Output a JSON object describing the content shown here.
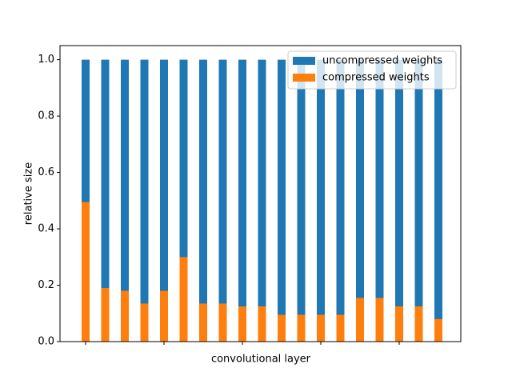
{
  "chart_data": {
    "type": "bar",
    "xlabel": "convolutional layer",
    "ylabel": "relative size",
    "categories": [
      null,
      null,
      null,
      null,
      null,
      null,
      null,
      null,
      null,
      null,
      null,
      null,
      null,
      null,
      null,
      null,
      null,
      null,
      null
    ],
    "series": [
      {
        "name": "uncompressed weights",
        "color": "#1f77b4",
        "values": [
          1,
          1,
          1,
          1,
          1,
          1,
          1,
          1,
          1,
          1,
          1,
          1,
          1,
          1,
          1,
          1,
          1,
          1,
          1
        ]
      },
      {
        "name": "compressed weights",
        "color": "#ff7f0e",
        "values": [
          0.495,
          0.19,
          0.18,
          0.135,
          0.18,
          0.3,
          0.135,
          0.135,
          0.125,
          0.125,
          0.095,
          0.095,
          0.095,
          0.095,
          0.155,
          0.155,
          0.125,
          0.125,
          0.08
        ]
      }
    ],
    "ylim": [
      0,
      1.05
    ],
    "yticks": [
      {
        "value": 0,
        "label": "0.0"
      },
      0.2,
      0.4,
      0.6,
      0.8,
      {
        "value": 1,
        "label": "1.0"
      }
    ],
    "grid": false,
    "legend": "upper right"
  }
}
